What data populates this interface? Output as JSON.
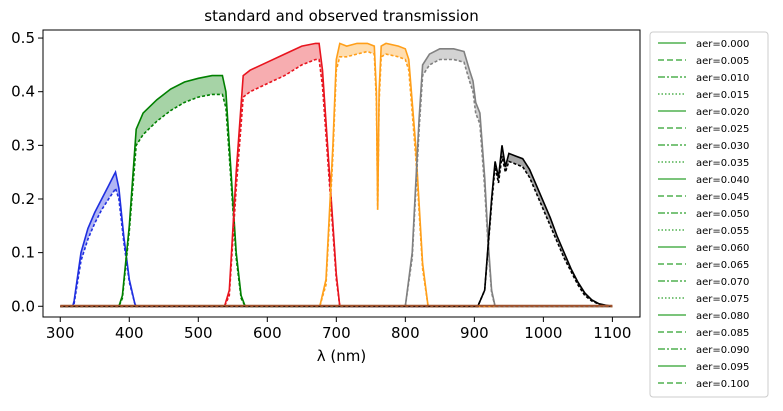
{
  "chart_data": {
    "type": "line",
    "title": "standard and observed transmission",
    "xlabel": "λ (nm)",
    "ylabel": "",
    "xlim": [
      275,
      1140
    ],
    "ylim": [
      -0.02,
      0.515
    ],
    "xticks": [
      300,
      400,
      500,
      600,
      700,
      800,
      900,
      1000,
      1100
    ],
    "yticks": [
      0.0,
      0.1,
      0.2,
      0.3,
      0.4,
      0.5
    ],
    "ytick_labels": [
      "0.0",
      "0.1",
      "0.2",
      "0.3",
      "0.4",
      "0.5"
    ],
    "grid": false,
    "legend_position": "outside-right",
    "legend": [
      {
        "label": "aer=0.000",
        "style": "solid"
      },
      {
        "label": "aer=0.005",
        "style": "dashed"
      },
      {
        "label": "aer=0.010",
        "style": "dashdot"
      },
      {
        "label": "aer=0.015",
        "style": "dotted"
      },
      {
        "label": "aer=0.020",
        "style": "solid"
      },
      {
        "label": "aer=0.025",
        "style": "dashed"
      },
      {
        "label": "aer=0.030",
        "style": "dashdot"
      },
      {
        "label": "aer=0.035",
        "style": "dotted"
      },
      {
        "label": "aer=0.040",
        "style": "solid"
      },
      {
        "label": "aer=0.045",
        "style": "dashed"
      },
      {
        "label": "aer=0.050",
        "style": "dashdot"
      },
      {
        "label": "aer=0.055",
        "style": "dotted"
      },
      {
        "label": "aer=0.060",
        "style": "solid"
      },
      {
        "label": "aer=0.065",
        "style": "dashed"
      },
      {
        "label": "aer=0.070",
        "style": "dashdot"
      },
      {
        "label": "aer=0.075",
        "style": "dotted"
      },
      {
        "label": "aer=0.080",
        "style": "solid"
      },
      {
        "label": "aer=0.085",
        "style": "dashed"
      },
      {
        "label": "aer=0.090",
        "style": "dashdot"
      },
      {
        "label": "aer=0.095",
        "style": "solid"
      },
      {
        "label": "aer=0.100",
        "style": "dashed"
      }
    ],
    "legend_color": "#2ca02c",
    "series": [
      {
        "color": "#1f2fe0",
        "x": [
          300,
          318,
          320,
          330,
          340,
          350,
          360,
          370,
          378,
          380,
          385,
          392,
          400,
          408,
          410,
          1100
        ],
        "y_top": [
          0,
          0,
          0.01,
          0.1,
          0.145,
          0.175,
          0.2,
          0.225,
          0.245,
          0.25,
          0.22,
          0.13,
          0.05,
          0.005,
          0,
          0
        ],
        "y_bottom": [
          0,
          0,
          0.005,
          0.085,
          0.125,
          0.155,
          0.18,
          0.2,
          0.215,
          0.22,
          0.2,
          0.12,
          0.045,
          0.005,
          0,
          0
        ]
      },
      {
        "color": "#008000",
        "x": [
          300,
          385,
          390,
          400,
          410,
          420,
          440,
          460,
          480,
          500,
          520,
          535,
          540,
          545,
          555,
          562,
          568,
          1100
        ],
        "y_top": [
          0,
          0,
          0.02,
          0.15,
          0.33,
          0.36,
          0.385,
          0.405,
          0.418,
          0.425,
          0.43,
          0.43,
          0.4,
          0.3,
          0.1,
          0.02,
          0,
          0
        ],
        "y_bottom": [
          0,
          0,
          0.015,
          0.14,
          0.3,
          0.32,
          0.345,
          0.365,
          0.38,
          0.39,
          0.395,
          0.395,
          0.37,
          0.28,
          0.09,
          0.015,
          0,
          0
        ]
      },
      {
        "color": "#e8141e",
        "x": [
          300,
          538,
          545,
          555,
          565,
          575,
          600,
          625,
          650,
          670,
          675,
          680,
          690,
          700,
          705,
          1100
        ],
        "y_top": [
          0,
          0,
          0.03,
          0.25,
          0.43,
          0.44,
          0.455,
          0.47,
          0.485,
          0.49,
          0.49,
          0.44,
          0.25,
          0.06,
          0,
          0
        ],
        "y_bottom": [
          0,
          0,
          0.02,
          0.22,
          0.39,
          0.4,
          0.415,
          0.43,
          0.45,
          0.46,
          0.46,
          0.41,
          0.23,
          0.05,
          0,
          0
        ]
      },
      {
        "color": "#ff9f1a",
        "x": [
          300,
          676,
          685,
          695,
          700,
          705,
          715,
          730,
          745,
          755,
          758,
          760,
          762,
          765,
          772,
          790,
          800,
          805,
          815,
          825,
          833,
          1100
        ],
        "y_top": [
          0,
          0,
          0.05,
          0.3,
          0.46,
          0.49,
          0.485,
          0.49,
          0.49,
          0.485,
          0.4,
          0.18,
          0.4,
          0.485,
          0.49,
          0.485,
          0.48,
          0.46,
          0.3,
          0.08,
          0,
          0
        ],
        "y_bottom": [
          0,
          0,
          0.04,
          0.28,
          0.44,
          0.465,
          0.465,
          0.47,
          0.475,
          0.47,
          0.38,
          0.18,
          0.38,
          0.465,
          0.47,
          0.465,
          0.46,
          0.44,
          0.28,
          0.07,
          0,
          0
        ],
        "x_labels_note": ""
      },
      {
        "color": "#808080",
        "x": [
          300,
          800,
          810,
          820,
          825,
          835,
          850,
          870,
          885,
          893,
          898,
          902,
          908,
          915,
          920,
          925,
          930,
          1100
        ],
        "y_top": [
          0,
          0,
          0.1,
          0.35,
          0.45,
          0.47,
          0.48,
          0.48,
          0.475,
          0.44,
          0.42,
          0.38,
          0.36,
          0.24,
          0.12,
          0.03,
          0,
          0
        ],
        "y_bottom": [
          0,
          0,
          0.09,
          0.33,
          0.43,
          0.45,
          0.46,
          0.46,
          0.455,
          0.42,
          0.4,
          0.36,
          0.34,
          0.22,
          0.11,
          0.025,
          0,
          0
        ]
      },
      {
        "color": "#000000",
        "x": [
          300,
          905,
          915,
          925,
          930,
          935,
          940,
          945,
          950,
          960,
          970,
          980,
          990,
          1000,
          1010,
          1020,
          1030,
          1040,
          1050,
          1060,
          1070,
          1080,
          1090,
          1100
        ],
        "y_top": [
          0,
          0,
          0.03,
          0.2,
          0.27,
          0.24,
          0.3,
          0.26,
          0.285,
          0.28,
          0.275,
          0.255,
          0.225,
          0.195,
          0.165,
          0.13,
          0.1,
          0.07,
          0.045,
          0.025,
          0.012,
          0.005,
          0.002,
          0
        ],
        "y_bottom": [
          0,
          0,
          0.03,
          0.19,
          0.26,
          0.23,
          0.28,
          0.25,
          0.27,
          0.265,
          0.26,
          0.24,
          0.21,
          0.18,
          0.15,
          0.12,
          0.09,
          0.065,
          0.04,
          0.02,
          0.01,
          0.004,
          0.001,
          0
        ]
      },
      {
        "color": "#a0522d",
        "x": [
          300,
          1100
        ],
        "y_top": [
          0.0015,
          0.0015
        ],
        "y_bottom": [
          0.0,
          0.0
        ]
      }
    ]
  }
}
